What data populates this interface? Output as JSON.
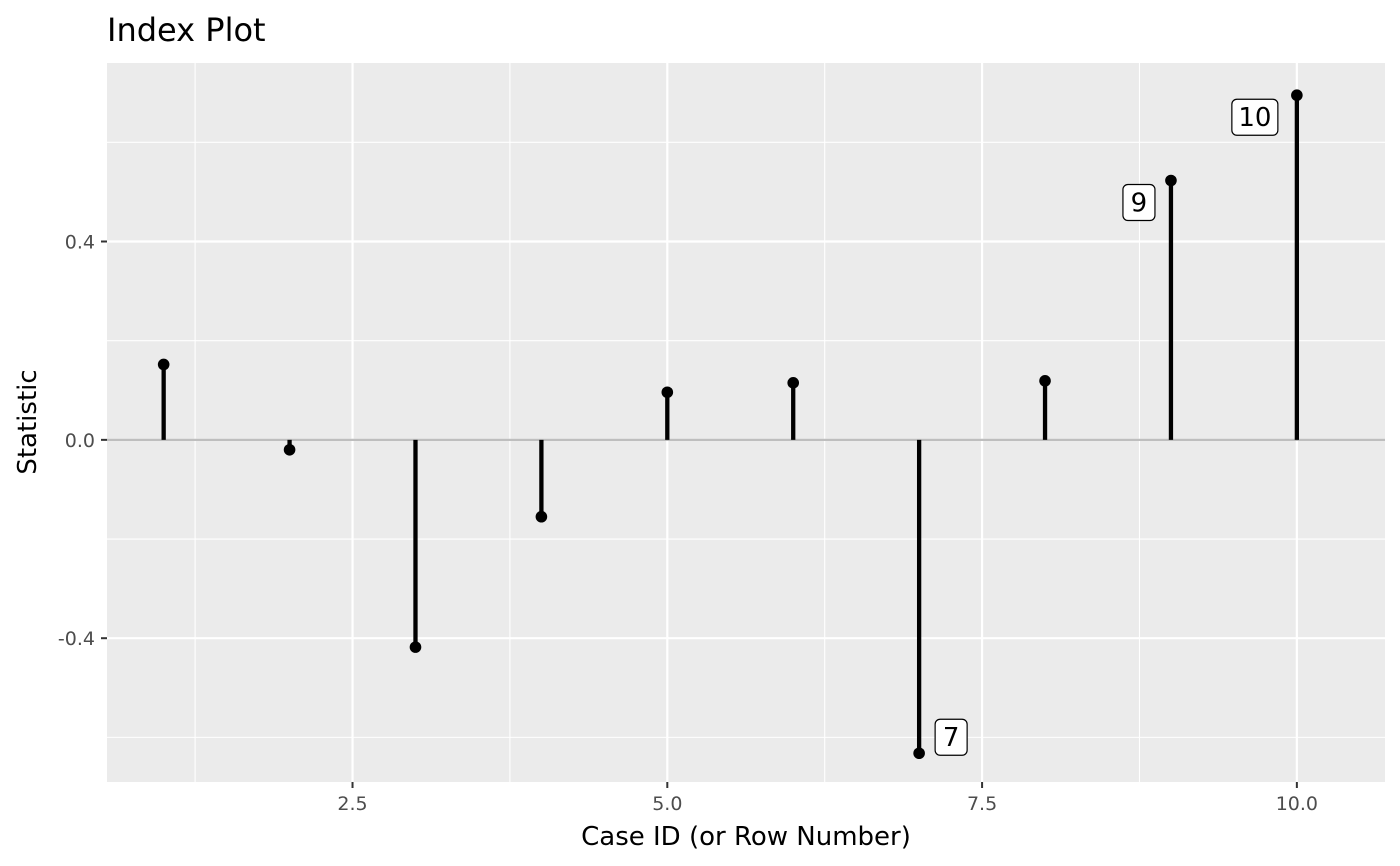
{
  "chart_data": {
    "type": "scatter",
    "style": "lollipop",
    "title": "Index Plot",
    "xlabel": "Case ID (or Row Number)",
    "ylabel": "Statistic",
    "xlim": [
      0.55,
      10.7
    ],
    "ylim": [
      -0.69,
      0.76
    ],
    "x_ticks": [
      2.5,
      5.0,
      7.5,
      10.0
    ],
    "x_tick_labels": [
      "2.5",
      "5.0",
      "7.5",
      "10.0"
    ],
    "y_ticks": [
      -0.4,
      0.0,
      0.4
    ],
    "y_tick_labels": [
      "-0.4",
      "0.0",
      "0.4"
    ],
    "grid": true,
    "reference_line_y": 0,
    "points": [
      {
        "x": 1,
        "y": 0.152,
        "label": ""
      },
      {
        "x": 2,
        "y": -0.02,
        "label": ""
      },
      {
        "x": 3,
        "y": -0.418,
        "label": ""
      },
      {
        "x": 4,
        "y": -0.155,
        "label": ""
      },
      {
        "x": 5,
        "y": 0.096,
        "label": ""
      },
      {
        "x": 6,
        "y": 0.115,
        "label": ""
      },
      {
        "x": 7,
        "y": -0.632,
        "label": "7"
      },
      {
        "x": 8,
        "y": 0.119,
        "label": ""
      },
      {
        "x": 9,
        "y": 0.523,
        "label": "9"
      },
      {
        "x": 10,
        "y": 0.695,
        "label": "10"
      }
    ],
    "colors": {
      "panel": "#ebebeb",
      "grid": "#ffffff",
      "reference_line": "#bebebe",
      "mark": "#000000"
    }
  }
}
